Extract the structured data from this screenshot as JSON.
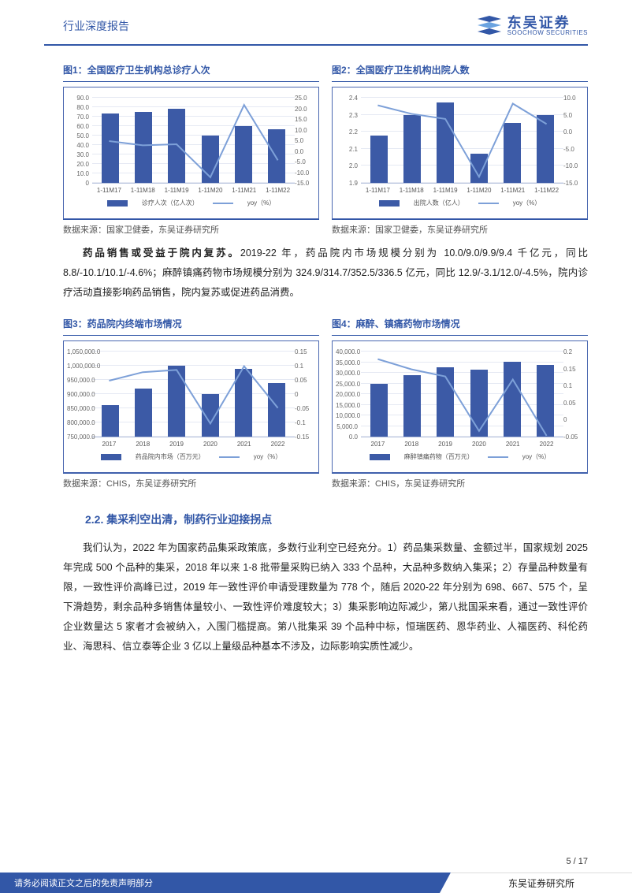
{
  "header": {
    "title": "行业深度报告"
  },
  "logo": {
    "cn": "东吴证券",
    "en": "SOOCHOW SECURITIES",
    "mark": "SCS"
  },
  "chart1": {
    "title": "图1：全国医疗卫生机构总诊疗人次",
    "type": "bar+line",
    "categories": [
      "1-11M17",
      "1-11M18",
      "1-11M19",
      "1-11M20",
      "1-11M21",
      "1-11M22"
    ],
    "bar_values": [
      73.0,
      75.0,
      78.0,
      50.0,
      60.0,
      57.0
    ],
    "bar_color": "#3c5aa6",
    "line_values": [
      5.0,
      3.0,
      3.5,
      -12.0,
      22.0,
      -4.0
    ],
    "line_color": "#7da0d8",
    "yL": {
      "min": 0,
      "max": 90,
      "ticks": [
        0,
        10,
        20,
        30,
        40,
        50,
        60,
        70,
        80,
        90
      ]
    },
    "yR": {
      "min": -15,
      "max": 25,
      "ticks": [
        -15,
        -10,
        -5,
        0,
        5,
        10,
        15,
        20,
        25
      ]
    },
    "legend": [
      "诊疗人次（亿人次）",
      "yoy（%）"
    ],
    "source": "数据来源：国家卫健委，东吴证券研究所",
    "bg": "#ffffff",
    "grid_color": "#e5e9f3"
  },
  "chart2": {
    "title": "图2：全国医疗卫生机构出院人数",
    "type": "bar+line",
    "categories": [
      "1-11M17",
      "1-11M18",
      "1-11M19",
      "1-11M20",
      "1-11M21",
      "1-11M22"
    ],
    "bar_values": [
      2.18,
      2.3,
      2.37,
      2.07,
      2.25,
      2.3
    ],
    "bar_color": "#3c5aa6",
    "line_values": [
      8.0,
      5.5,
      4.0,
      -13.0,
      8.5,
      2.5
    ],
    "line_color": "#7da0d8",
    "yL": {
      "min": 1.9,
      "max": 2.4,
      "ticks": [
        1.9,
        2.0,
        2.1,
        2.2,
        2.3,
        2.4
      ]
    },
    "yR": {
      "min": -15,
      "max": 10,
      "ticks": [
        -15,
        -10,
        -5,
        0,
        5,
        10
      ]
    },
    "legend": [
      "出院人数（亿人）",
      "yoy（%）"
    ],
    "source": "数据来源：国家卫健委，东吴证券研究所",
    "bg": "#ffffff",
    "grid_color": "#e5e9f3"
  },
  "paragraph1": {
    "bold": "药品销售或受益于院内复苏。",
    "rest": "2019-22 年，药品院内市场规模分别为 10.0/9.0/9.9/9.4 千亿元，同比 8.8/-10.1/10.1/-4.6%；麻醉镇痛药物市场规模分别为 324.9/314.7/352.5/336.5 亿元，同比 12.9/-3.1/12.0/-4.5%，院内诊疗活动直接影响药品销售，院内复苏或促进药品消费。"
  },
  "chart3": {
    "title": "图3：药品院内终端市场情况",
    "type": "bar+line",
    "categories": [
      "2017",
      "2018",
      "2019",
      "2020",
      "2021",
      "2022"
    ],
    "bar_values": [
      860000,
      920000,
      1000000,
      900000,
      990000,
      940000
    ],
    "bar_color": "#3c5aa6",
    "line_values": [
      0.05,
      0.08,
      0.088,
      -0.101,
      0.101,
      -0.046
    ],
    "line_color": "#7da0d8",
    "yL": {
      "min": 750000,
      "max": 1050000,
      "ticks": [
        750000,
        800000,
        850000,
        900000,
        950000,
        1000000,
        1050000
      ],
      "tick_labels": [
        "750,000.0",
        "800,000.0",
        "850,000.0",
        "900,000.0",
        "950,000.0",
        "1,000,000.0",
        "1,050,000.0"
      ]
    },
    "yR": {
      "min": -0.15,
      "max": 0.15,
      "ticks": [
        -0.15,
        -0.1,
        -0.05,
        0.0,
        0.05,
        0.1,
        0.15
      ],
      "tick_labels": [
        "-0.15",
        "-0.1",
        "-0.05",
        "0",
        "0.05",
        "0.1",
        "0.15"
      ]
    },
    "legend": [
      "药品院内市场（百万元）",
      "yoy（%）"
    ],
    "source": "数据来源：CHIS，东吴证券研究所",
    "bg": "#ffffff",
    "grid_color": "#e5e9f3"
  },
  "chart4": {
    "title": "图4：麻醉、镇痛药物市场情况",
    "type": "bar+line",
    "categories": [
      "2017",
      "2018",
      "2019",
      "2020",
      "2021",
      "2022"
    ],
    "bar_values": [
      25000,
      29000,
      32500,
      31500,
      35200,
      33600
    ],
    "bar_color": "#3c5aa6",
    "line_values": [
      0.18,
      0.15,
      0.129,
      -0.031,
      0.12,
      -0.045
    ],
    "line_color": "#7da0d8",
    "yL": {
      "min": 0,
      "max": 40000,
      "ticks": [
        0,
        5000,
        10000,
        15000,
        20000,
        25000,
        30000,
        35000,
        40000
      ],
      "tick_labels": [
        "0.0",
        "5,000.0",
        "10,000.0",
        "15,000.0",
        "20,000.0",
        "25,000.0",
        "30,000.0",
        "35,000.0",
        "40,000.0"
      ]
    },
    "yR": {
      "min": -0.05,
      "max": 0.2,
      "ticks": [
        -0.05,
        0.0,
        0.05,
        0.1,
        0.15,
        0.2
      ],
      "tick_labels": [
        "-0.05",
        "0",
        "0.05",
        "0.1",
        "0.15",
        "0.2"
      ]
    },
    "legend": [
      "麻醉镇痛药物（百万元）",
      "yoy（%）"
    ],
    "source": "数据来源：CHIS，东吴证券研究所",
    "bg": "#ffffff",
    "grid_color": "#e5e9f3"
  },
  "section": {
    "heading": "2.2.   集采利空出清，制药行业迎接拐点"
  },
  "paragraph2": {
    "b1": "我们认为，2022 年为国家药品集采政策底，多数行业利空已经充分。1）药品集采数量、金额过半，",
    "t1": "国家规划 2025 年完成 500 个品种的集采，2018 年以来 1-8 批带量采购已纳入 333 个品种，大品种多数纳入集采；",
    "b2": "2）存量品种数量有限，一致性评价高峰已过，",
    "t2": "2019 年一致性评价申请受理数量为 778 个，随后 2020-22 年分别为 698、667、575 个，呈下滑趋势，剩余品种多销售体量较小、一致性评价难度较大；",
    "b3": "3）集采影响边际减少，",
    "t3": "第八批国采来看，通过一致性评价企业数量达 5 家者才会被纳入，入围门槛提高。第八批集采 39 个品种中标，恒瑞医药、恩华药业、人福医药、科伦药业、海思科、信立泰等企业 3 亿以上量级品种基本不涉及，边际影响实质性减少。"
  },
  "footer": {
    "disclaimer": "请务必阅读正文之后的免责声明部分",
    "org": "东吴证券研究所",
    "page": "5  /  17"
  }
}
